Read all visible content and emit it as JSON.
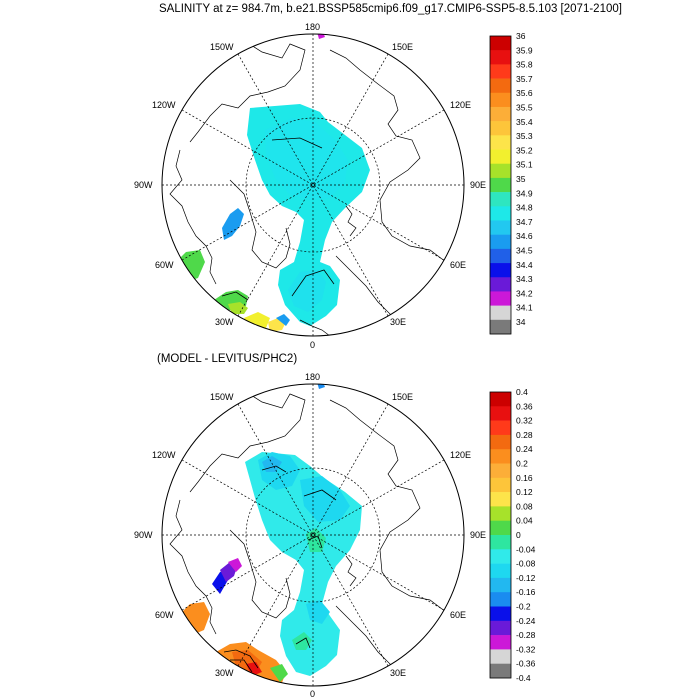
{
  "panel1": {
    "title": "SALINITY at z= 984.7m, b.e21.BSSP585cmip6.f09_g17.CMIP6-SSP5-8.5.103 [2071-2100]",
    "labels": {
      "top": "180",
      "bottom": "0",
      "left": "90W",
      "right": "90E",
      "ul150": "150W",
      "ur150": "150E",
      "ul120": "120W",
      "ur120": "120E",
      "ll60": "60W",
      "lr60": "60E",
      "ll30": "30W",
      "lr30": "30E"
    },
    "colorbar": {
      "labels": [
        "36",
        "35.9",
        "35.8",
        "35.7",
        "35.6",
        "35.5",
        "35.4",
        "35.3",
        "35.2",
        "35.1",
        "35",
        "34.9",
        "34.8",
        "34.7",
        "34.6",
        "34.5",
        "34.4",
        "34.3",
        "34.2",
        "34.1",
        "34"
      ],
      "colors": [
        "#cc0000",
        "#e81010",
        "#ff3a1a",
        "#f36a10",
        "#fb8e1e",
        "#fcae38",
        "#fdc53a",
        "#fde44a",
        "#f2f02e",
        "#a7e22a",
        "#4fd94a",
        "#2ee6c0",
        "#1ee8e8",
        "#22c8f0",
        "#1a9cf0",
        "#2060e8",
        "#0a10ea",
        "#6a1ad8",
        "#cc18d8",
        "#d6d6d6",
        "#7a7a7a"
      ]
    }
  },
  "panel2": {
    "title": "(MODEL - LEVITUS/PHC2)",
    "labels": {
      "top": "180",
      "bottom": "0",
      "left": "90W",
      "right": "90E",
      "ul150": "150W",
      "ur150": "150E",
      "ul120": "120W",
      "ur120": "120E",
      "ll60": "60W",
      "lr60": "60E",
      "ll30": "30W",
      "lr30": "30E"
    },
    "colorbar": {
      "labels": [
        "0.4",
        "0.36",
        "0.32",
        "0.28",
        "0.24",
        "0.2",
        "0.16",
        "0.12",
        "0.08",
        "0.04",
        "0",
        "-0.04",
        "-0.08",
        "-0.12",
        "-0.16",
        "-0.2",
        "-0.24",
        "-0.28",
        "-0.32",
        "-0.36",
        "-0.4"
      ],
      "colors": [
        "#cc0000",
        "#e81010",
        "#ff3a1a",
        "#f36a10",
        "#fb8e1e",
        "#fcae38",
        "#fdc53a",
        "#fde44a",
        "#a7e22a",
        "#4fd94a",
        "#2ee6a0",
        "#30eaea",
        "#1ed8f0",
        "#22b8f0",
        "#1a8cf0",
        "#0a10ea",
        "#6a1ad8",
        "#cc18d8",
        "#d6d6d6",
        "#7a7a7a"
      ]
    }
  }
}
